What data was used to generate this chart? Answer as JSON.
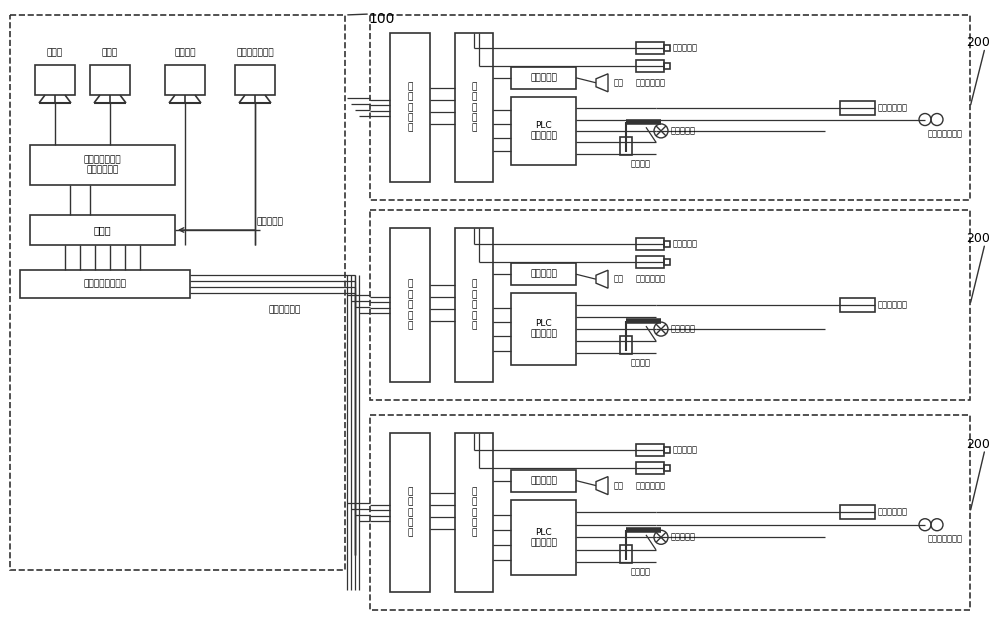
{
  "bg_color": "#ffffff",
  "lc": "#888888",
  "dc": "#333333",
  "tc": "#000000",
  "fig_w": 10.0,
  "fig_h": 6.2,
  "dpi": 100,
  "monitors": [
    "监视器",
    "监视器",
    "管理终端",
    "道口控制操作机"
  ],
  "nvr_text": "网络硬盘录像机\n或矩阵服务器",
  "sw_text": "交换机",
  "rack_text": "机架式光电转换器",
  "comm_text": "通信网络线",
  "fiber_text": "单模光纤网络",
  "oec_text": "光\n电\n转\n换\n器",
  "nsw_text": "网\n络\n交\n换\n机",
  "plc_text": "PLC\n道口控制柜",
  "amp_text": "音频放大器",
  "cam_text": "网络摄像机",
  "horn_text": "喇叭",
  "flash_text": "爆闪警示装置",
  "light_text": "道口照明灯",
  "gate_text": "电子护栏",
  "rail_text": "铁路预告信号机",
  "label100": "100",
  "label200": "200"
}
